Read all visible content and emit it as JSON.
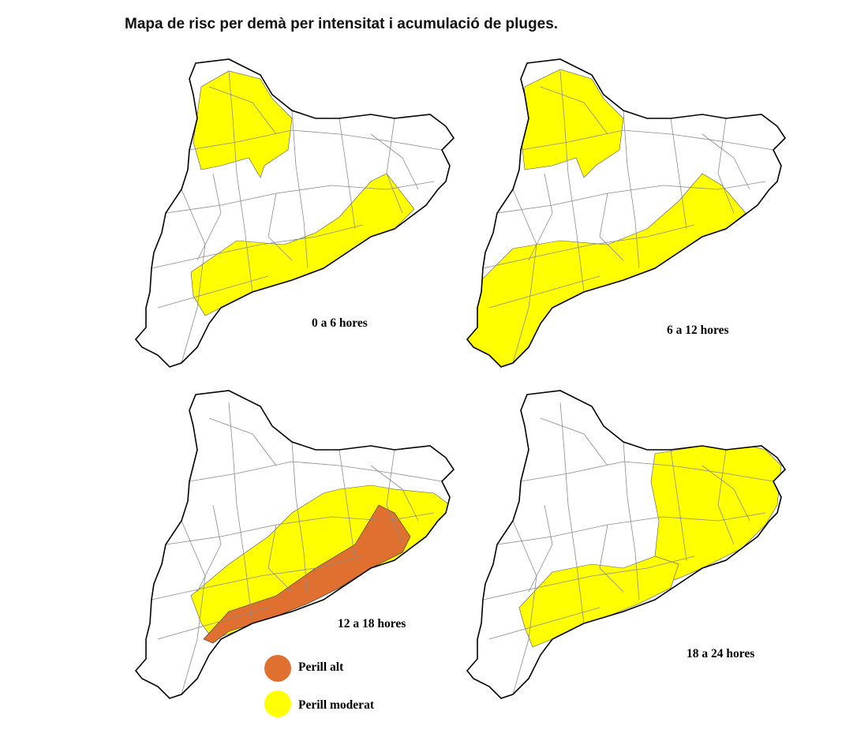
{
  "title": "Mapa de risc per demà per intensitat i acumulació de pluges.",
  "panels": [
    {
      "label": "0 a 6 hores"
    },
    {
      "label": "6 a 12 hores"
    },
    {
      "label": "12 a 18 hores"
    },
    {
      "label": "18 a 24 hores"
    }
  ],
  "legend": [
    {
      "label": "Perill alt"
    },
    {
      "label": "Perill moderat"
    }
  ]
}
